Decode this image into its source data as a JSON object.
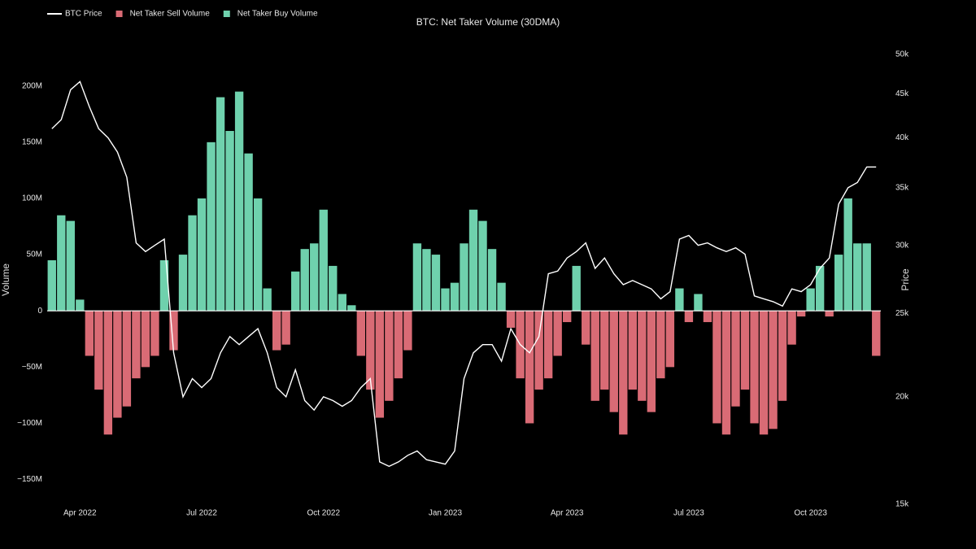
{
  "chart_data": {
    "type": "bar",
    "title": "BTC: Net Taker Volume (30DMA)",
    "y_label": "Volume",
    "y2_label": "Price",
    "categories": [
      null,
      null,
      null,
      "Apr 2022",
      null,
      null,
      null,
      null,
      null,
      null,
      null,
      null,
      null,
      null,
      null,
      null,
      "Jul 2022",
      null,
      null,
      null,
      null,
      null,
      null,
      null,
      null,
      null,
      null,
      null,
      null,
      "Oct 2022",
      null,
      null,
      null,
      null,
      null,
      null,
      null,
      null,
      null,
      null,
      null,
      null,
      "Jan 2023",
      null,
      null,
      null,
      null,
      null,
      null,
      null,
      null,
      null,
      null,
      null,
      null,
      "Apr 2023",
      null,
      null,
      null,
      null,
      null,
      null,
      null,
      null,
      null,
      null,
      null,
      null,
      "Jul 2023",
      null,
      null,
      null,
      null,
      null,
      null,
      null,
      null,
      null,
      null,
      null,
      null,
      "Oct 2023",
      null,
      null,
      null,
      null,
      null,
      null,
      null
    ],
    "series": [
      {
        "name": "BTC Price",
        "type": "line",
        "axis": "y2",
        "color": "#ffffff",
        "values": [
          41000,
          42000,
          45500,
          46500,
          43500,
          41000,
          40000,
          38500,
          36000,
          30200,
          29500,
          30000,
          30500,
          22500,
          20000,
          21000,
          20500,
          21000,
          22500,
          23500,
          23000,
          23500,
          24000,
          22500,
          20500,
          20000,
          21500,
          19800,
          19300,
          20000,
          19800,
          19500,
          19800,
          20500,
          21000,
          16800,
          16600,
          16800,
          17100,
          17300,
          16900,
          16800,
          16700,
          17300,
          21000,
          22500,
          23000,
          23000,
          22000,
          24000,
          23000,
          22500,
          23500,
          27800,
          28000,
          29000,
          29500,
          30200,
          28200,
          29000,
          27800,
          27000,
          27300,
          27000,
          26700,
          26000,
          26500,
          30500,
          30800,
          30000,
          30200,
          29800,
          29500,
          29800,
          29300,
          26200,
          26000,
          25800,
          25500,
          26700,
          26500,
          27000,
          28200,
          29000,
          33500,
          35000,
          35500,
          37000,
          37000
        ]
      },
      {
        "name": "Net Taker Sell Volume",
        "type": "bar",
        "color": "#d96b75",
        "values": [
          null,
          null,
          null,
          null,
          -40000000,
          -70000000,
          -110000000,
          -95000000,
          -85000000,
          -60000000,
          -50000000,
          -40000000,
          null,
          -35000000,
          null,
          null,
          null,
          null,
          null,
          null,
          null,
          null,
          null,
          null,
          -35000000,
          -30000000,
          null,
          null,
          null,
          null,
          null,
          null,
          null,
          -40000000,
          -70000000,
          -95000000,
          -80000000,
          -60000000,
          -35000000,
          null,
          null,
          null,
          null,
          null,
          null,
          null,
          null,
          null,
          null,
          -15000000,
          -60000000,
          -100000000,
          -70000000,
          -60000000,
          -40000000,
          -10000000,
          null,
          -30000000,
          -80000000,
          -70000000,
          -90000000,
          -110000000,
          -70000000,
          -80000000,
          -90000000,
          -60000000,
          -50000000,
          null,
          -10000000,
          null,
          -10000000,
          -100000000,
          -110000000,
          -85000000,
          -70000000,
          -100000000,
          -110000000,
          -105000000,
          -80000000,
          -30000000,
          -5000000,
          null,
          null,
          -5000000,
          null,
          null,
          null,
          null,
          -40000000
        ]
      },
      {
        "name": "Net Taker Buy Volume",
        "type": "bar",
        "color": "#6fd1ad",
        "values": [
          45000000,
          85000000,
          80000000,
          10000000,
          null,
          null,
          null,
          null,
          null,
          null,
          null,
          null,
          45000000,
          null,
          50000000,
          85000000,
          100000000,
          150000000,
          190000000,
          160000000,
          195000000,
          140000000,
          100000000,
          20000000,
          null,
          null,
          35000000,
          55000000,
          60000000,
          90000000,
          40000000,
          15000000,
          5000000,
          null,
          null,
          null,
          null,
          null,
          null,
          60000000,
          55000000,
          50000000,
          20000000,
          25000000,
          60000000,
          90000000,
          80000000,
          55000000,
          25000000,
          null,
          null,
          null,
          null,
          null,
          null,
          null,
          40000000,
          null,
          null,
          null,
          null,
          null,
          null,
          null,
          null,
          null,
          null,
          20000000,
          null,
          15000000,
          null,
          null,
          null,
          null,
          null,
          null,
          null,
          null,
          null,
          null,
          null,
          20000000,
          40000000,
          null,
          50000000,
          100000000,
          60000000,
          60000000,
          null
        ]
      }
    ],
    "ylim": [
      -172000000,
      228000000
    ],
    "yticks": [
      {
        "value": -150000000,
        "label": "−150M"
      },
      {
        "value": -100000000,
        "label": "−100M"
      },
      {
        "value": -50000000,
        "label": "−50M"
      },
      0,
      {
        "value": 50000000,
        "label": "50M"
      },
      {
        "value": 100000000,
        "label": "100M"
      },
      {
        "value": 150000000,
        "label": "150M"
      },
      {
        "value": 200000000,
        "label": "200M"
      }
    ],
    "y2lim": [
      15000,
      50000
    ],
    "y2scale": "log",
    "y2ticks": [
      {
        "value": 15000,
        "label": "15k"
      },
      {
        "value": 20000,
        "label": "20k"
      },
      {
        "value": 25000,
        "label": "25k"
      },
      {
        "value": 30000,
        "label": "30k"
      },
      {
        "value": 35000,
        "label": "35k"
      },
      {
        "value": 40000,
        "label": "40k"
      },
      {
        "value": 45000,
        "label": "45k"
      },
      {
        "value": 50000,
        "label": "50k"
      }
    ],
    "legend": "top-left"
  }
}
